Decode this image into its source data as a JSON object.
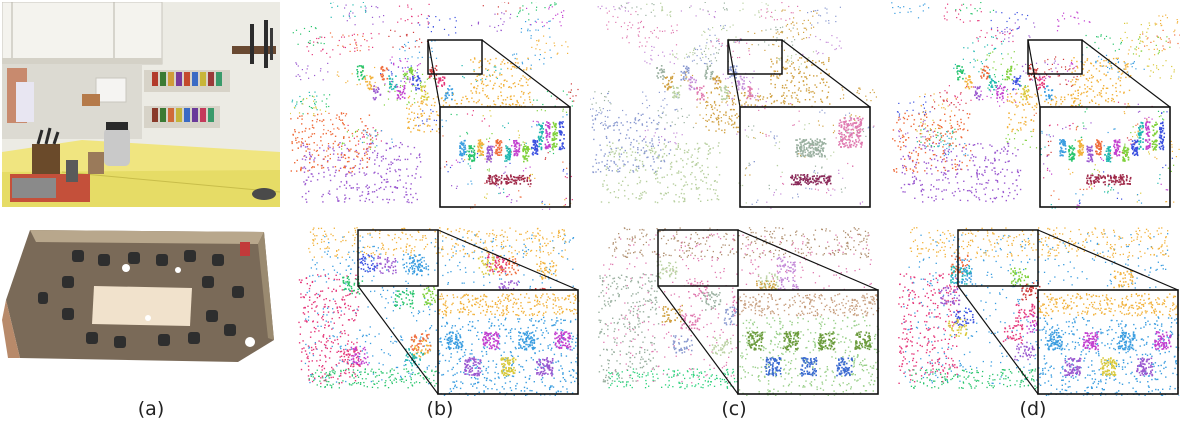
{
  "figure": {
    "labels": [
      "(a)",
      "(b)",
      "(c)",
      "(d)"
    ]
  },
  "palette": {
    "kitchen_wall": "#eceae2",
    "countertop": "#e6dc66",
    "floor": "#7a6a58",
    "table": "#f1e2cc",
    "inset_border": "#111111",
    "seg_colors": [
      "#e5377a",
      "#3a9de0",
      "#27c46b",
      "#f2b23c",
      "#9b59d0",
      "#ef6b3a",
      "#1fb7b0",
      "#c23fcf",
      "#7fd13b",
      "#3a4fe0",
      "#d9c93a",
      "#cf3a3a"
    ]
  }
}
